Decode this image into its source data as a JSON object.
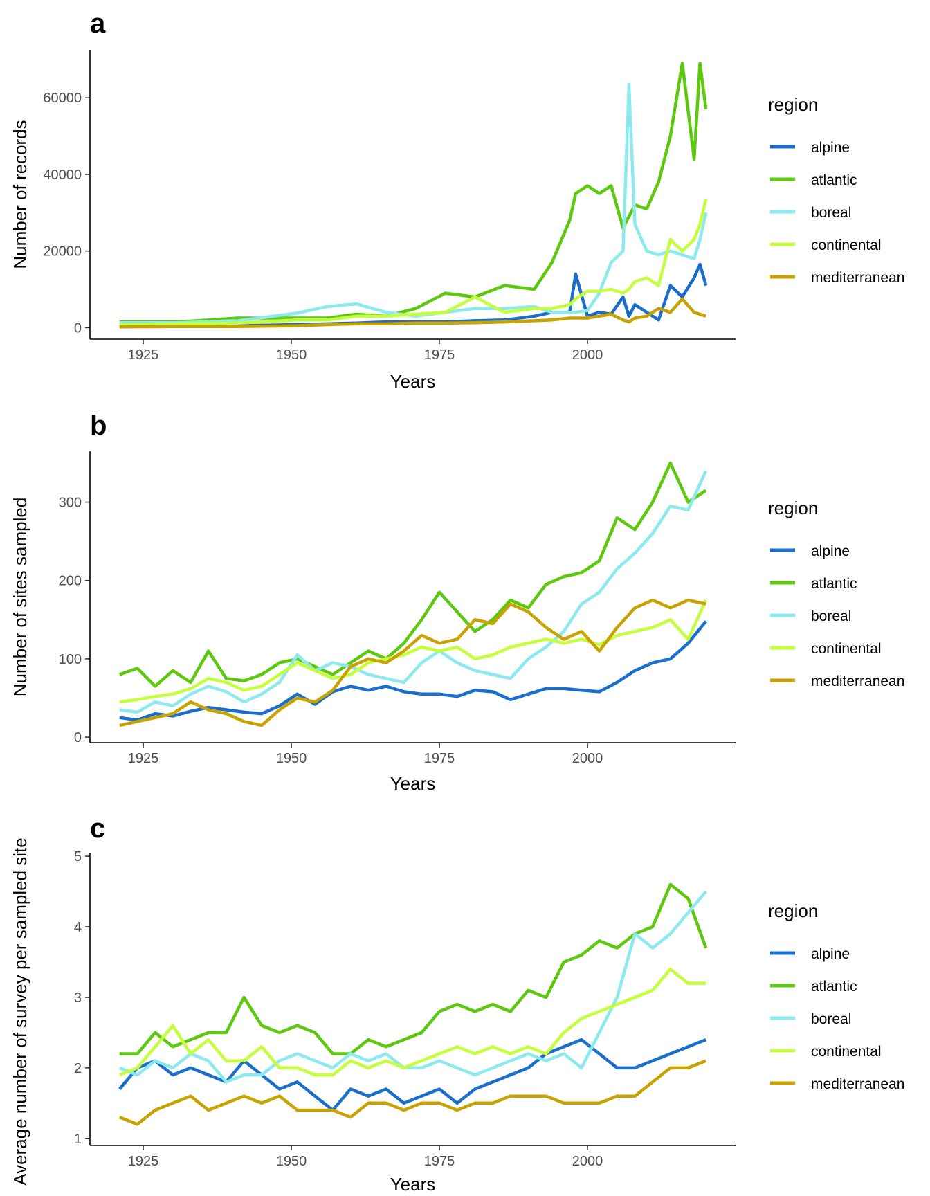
{
  "colors": {
    "alpine": "#1a6fcc",
    "atlantic": "#5cc80e",
    "boreal": "#8ceaee",
    "continental": "#c4ff3c",
    "mediterranean": "#c8a200"
  },
  "legend": {
    "title": "region",
    "items": [
      "alpine",
      "atlantic",
      "boreal",
      "continental",
      "mediterranean"
    ]
  },
  "chart_data": [
    {
      "type": "line",
      "panel_label": "a",
      "xlabel": "Years",
      "ylabel": "Number of records",
      "xlim": [
        1916,
        2025
      ],
      "ylim": [
        -3000,
        72500
      ],
      "xticks": [
        1925,
        1950,
        1975,
        2000
      ],
      "yticks": [
        0,
        20000,
        40000,
        60000
      ],
      "grid": false,
      "legend_position": "right",
      "x": [
        1921,
        1931,
        1941,
        1951,
        1956,
        1961,
        1966,
        1971,
        1976,
        1981,
        1986,
        1991,
        1994,
        1997,
        1998,
        2000,
        2002,
        2004,
        2006,
        2007,
        2008,
        2010,
        2012,
        2014,
        2016,
        2018,
        2019,
        2020
      ],
      "series": [
        {
          "name": "alpine",
          "values": [
            300,
            400,
            500,
            800,
            1000,
            1200,
            1500,
            1500,
            1500,
            1800,
            2000,
            3000,
            4000,
            4000,
            14000,
            3000,
            4000,
            3500,
            8000,
            3000,
            6000,
            4000,
            2000,
            11000,
            8000,
            13000,
            16500,
            11000
          ]
        },
        {
          "name": "atlantic",
          "values": [
            1500,
            1500,
            2500,
            2500,
            2500,
            3500,
            3000,
            5000,
            9000,
            8000,
            11000,
            10000,
            17000,
            28000,
            35000,
            37000,
            35000,
            37000,
            26000,
            29000,
            32000,
            31000,
            38000,
            50000,
            69000,
            44000,
            69000,
            57000
          ]
        },
        {
          "name": "boreal",
          "values": [
            1300,
            1300,
            1800,
            3800,
            5500,
            6200,
            4000,
            3000,
            4000,
            5000,
            5000,
            5500,
            4000,
            4000,
            4000,
            4500,
            9000,
            17000,
            20000,
            63500,
            27000,
            20000,
            19000,
            20000,
            19000,
            18000,
            23000,
            30000
          ]
        },
        {
          "name": "continental",
          "values": [
            800,
            1000,
            1200,
            2000,
            2000,
            3000,
            3000,
            3500,
            4000,
            8000,
            4000,
            5000,
            5000,
            6000,
            7500,
            9500,
            9500,
            10000,
            9000,
            10000,
            12000,
            13000,
            11000,
            23000,
            20000,
            23000,
            27000,
            33500
          ]
        },
        {
          "name": "mediterranean",
          "values": [
            200,
            300,
            300,
            500,
            800,
            1000,
            1000,
            1200,
            1200,
            1300,
            1500,
            1800,
            2000,
            2500,
            2500,
            2500,
            3000,
            3500,
            2000,
            1500,
            2500,
            3000,
            5000,
            4000,
            7500,
            4000,
            3500,
            3000
          ]
        }
      ]
    },
    {
      "type": "line",
      "panel_label": "b",
      "xlabel": "Years",
      "ylabel": "Number of sites sampled",
      "xlim": [
        1916,
        2025
      ],
      "ylim": [
        -7,
        365
      ],
      "xticks": [
        1925,
        1950,
        1975,
        2000
      ],
      "yticks": [
        0,
        100,
        200,
        300
      ],
      "grid": false,
      "legend_position": "right",
      "x": [
        1921,
        1924,
        1927,
        1930,
        1933,
        1936,
        1939,
        1942,
        1945,
        1948,
        1951,
        1954,
        1957,
        1960,
        1963,
        1966,
        1969,
        1972,
        1975,
        1978,
        1981,
        1984,
        1987,
        1990,
        1993,
        1996,
        1999,
        2002,
        2005,
        2008,
        2011,
        2014,
        2017,
        2020
      ],
      "series": [
        {
          "name": "alpine",
          "values": [
            25,
            22,
            30,
            27,
            33,
            38,
            35,
            32,
            30,
            40,
            55,
            42,
            58,
            65,
            60,
            65,
            58,
            55,
            55,
            52,
            60,
            58,
            48,
            55,
            62,
            62,
            60,
            58,
            70,
            85,
            95,
            100,
            120,
            148
          ]
        },
        {
          "name": "atlantic",
          "values": [
            80,
            88,
            65,
            85,
            70,
            110,
            75,
            72,
            80,
            95,
            100,
            90,
            80,
            95,
            110,
            100,
            120,
            150,
            185,
            160,
            135,
            150,
            175,
            165,
            195,
            205,
            210,
            225,
            280,
            265,
            300,
            350,
            300,
            315
          ]
        },
        {
          "name": "boreal",
          "values": [
            35,
            32,
            45,
            40,
            55,
            65,
            58,
            45,
            55,
            70,
            105,
            85,
            95,
            90,
            80,
            75,
            70,
            95,
            110,
            95,
            85,
            80,
            75,
            100,
            115,
            135,
            170,
            185,
            215,
            235,
            260,
            295,
            290,
            340
          ]
        },
        {
          "name": "continental",
          "values": [
            45,
            48,
            52,
            55,
            62,
            75,
            70,
            60,
            65,
            80,
            95,
            85,
            75,
            80,
            95,
            100,
            105,
            115,
            110,
            115,
            100,
            105,
            115,
            120,
            125,
            120,
            125,
            118,
            130,
            135,
            140,
            150,
            125,
            175
          ]
        },
        {
          "name": "mediterranean",
          "values": [
            15,
            20,
            25,
            30,
            45,
            35,
            30,
            20,
            15,
            35,
            50,
            45,
            60,
            90,
            100,
            95,
            110,
            130,
            120,
            125,
            150,
            145,
            170,
            160,
            140,
            125,
            135,
            110,
            140,
            165,
            175,
            165,
            175,
            170
          ]
        }
      ]
    },
    {
      "type": "line",
      "panel_label": "c",
      "xlabel": "Years",
      "ylabel": "Average number of survey per sampled site",
      "xlim": [
        1916,
        2025
      ],
      "ylim": [
        0.9,
        5.05
      ],
      "xticks": [
        1925,
        1950,
        1975,
        2000
      ],
      "yticks": [
        1,
        2,
        3,
        4,
        5
      ],
      "grid": false,
      "legend_position": "right",
      "x": [
        1921,
        1924,
        1927,
        1930,
        1933,
        1936,
        1939,
        1942,
        1945,
        1948,
        1951,
        1954,
        1957,
        1960,
        1963,
        1966,
        1969,
        1972,
        1975,
        1978,
        1981,
        1984,
        1987,
        1990,
        1993,
        1996,
        1999,
        2002,
        2005,
        2008,
        2011,
        2014,
        2017,
        2020
      ],
      "series": [
        {
          "name": "alpine",
          "values": [
            1.7,
            2.0,
            2.1,
            1.9,
            2.0,
            1.9,
            1.8,
            2.1,
            1.9,
            1.7,
            1.8,
            1.6,
            1.4,
            1.7,
            1.6,
            1.7,
            1.5,
            1.6,
            1.7,
            1.5,
            1.7,
            1.8,
            1.9,
            2.0,
            2.2,
            2.3,
            2.4,
            2.2,
            2.0,
            2.0,
            2.1,
            2.2,
            2.3,
            2.4
          ]
        },
        {
          "name": "atlantic",
          "values": [
            2.2,
            2.2,
            2.5,
            2.3,
            2.4,
            2.5,
            2.5,
            3.0,
            2.6,
            2.5,
            2.6,
            2.5,
            2.2,
            2.2,
            2.4,
            2.3,
            2.4,
            2.5,
            2.8,
            2.9,
            2.8,
            2.9,
            2.8,
            3.1,
            3.0,
            3.5,
            3.6,
            3.8,
            3.7,
            3.9,
            4.0,
            4.6,
            4.4,
            3.7
          ]
        },
        {
          "name": "boreal",
          "values": [
            2.0,
            1.9,
            2.1,
            2.0,
            2.2,
            2.1,
            1.8,
            1.9,
            1.9,
            2.1,
            2.2,
            2.1,
            2.0,
            2.2,
            2.1,
            2.2,
            2.0,
            2.0,
            2.1,
            2.0,
            1.9,
            2.0,
            2.1,
            2.2,
            2.1,
            2.2,
            2.0,
            2.5,
            3.0,
            3.9,
            3.7,
            3.9,
            4.2,
            4.5
          ]
        },
        {
          "name": "continental",
          "values": [
            1.9,
            2.0,
            2.3,
            2.6,
            2.2,
            2.4,
            2.1,
            2.1,
            2.3,
            2.0,
            2.0,
            1.9,
            1.9,
            2.1,
            2.0,
            2.1,
            2.0,
            2.1,
            2.2,
            2.3,
            2.2,
            2.3,
            2.2,
            2.3,
            2.2,
            2.5,
            2.7,
            2.8,
            2.9,
            3.0,
            3.1,
            3.4,
            3.2,
            3.2
          ]
        },
        {
          "name": "mediterranean",
          "values": [
            1.3,
            1.2,
            1.4,
            1.5,
            1.6,
            1.4,
            1.5,
            1.6,
            1.5,
            1.6,
            1.4,
            1.4,
            1.4,
            1.3,
            1.5,
            1.5,
            1.4,
            1.5,
            1.5,
            1.4,
            1.5,
            1.5,
            1.6,
            1.6,
            1.6,
            1.5,
            1.5,
            1.5,
            1.6,
            1.6,
            1.8,
            2.0,
            2.0,
            2.1
          ]
        }
      ]
    }
  ]
}
